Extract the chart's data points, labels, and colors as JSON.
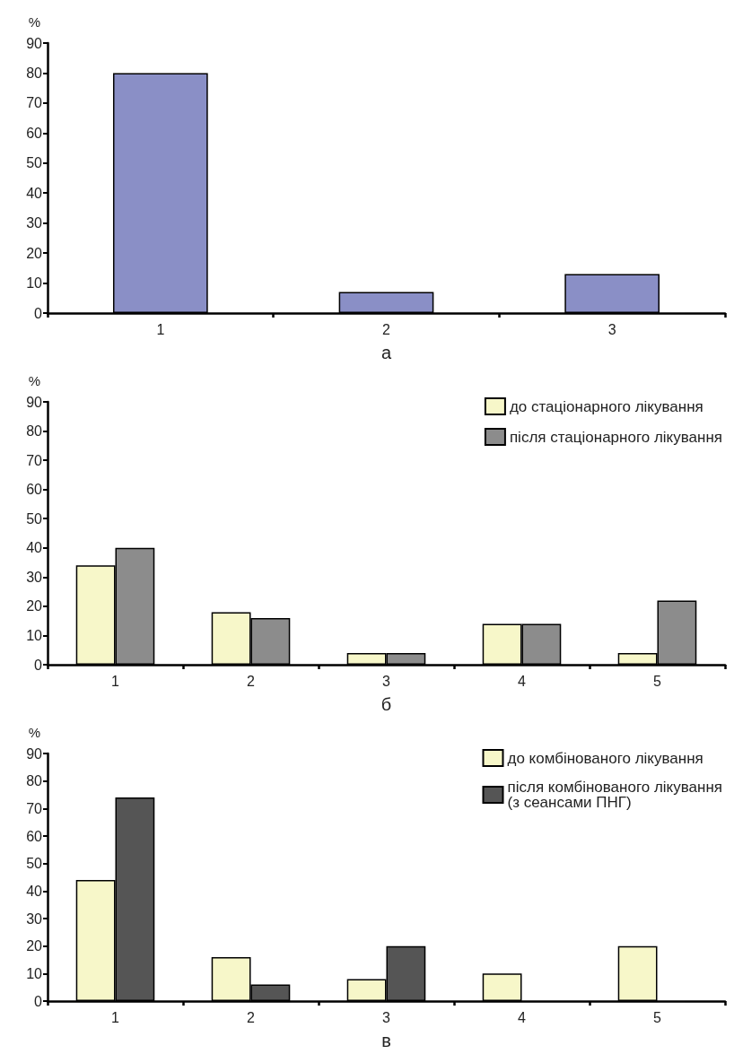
{
  "chart_data": [
    {
      "type": "bar",
      "xlabel": "а",
      "ylabel": "%",
      "categories": [
        "1",
        "2",
        "3"
      ],
      "values": [
        80,
        7,
        13
      ],
      "color": "#8a8fc6",
      "ylim": [
        0,
        90
      ],
      "yticks": [
        0,
        10,
        20,
        30,
        40,
        50,
        60,
        70,
        80,
        90
      ],
      "grid": false,
      "legend": false
    },
    {
      "type": "bar",
      "xlabel": "б",
      "ylabel": "%",
      "categories": [
        "1",
        "2",
        "3",
        "4",
        "5"
      ],
      "series": [
        {
          "name": "до стаціонарного лікування",
          "color": "#f7f7c9",
          "values": [
            34,
            18,
            4,
            14,
            4
          ]
        },
        {
          "name": "після стаціонарного лікування",
          "color": "#8c8c8c",
          "values": [
            40,
            16,
            4,
            14,
            22
          ]
        }
      ],
      "ylim": [
        0,
        90
      ],
      "yticks": [
        0,
        10,
        20,
        30,
        40,
        50,
        60,
        70,
        80,
        90
      ],
      "grid": false,
      "legend": "top right"
    },
    {
      "type": "bar",
      "xlabel": "в",
      "ylabel": "%",
      "categories": [
        "1",
        "2",
        "3",
        "4",
        "5"
      ],
      "series": [
        {
          "name": "до комбінованого лікування",
          "color": "#f7f7c9",
          "values": [
            44,
            16,
            8,
            10,
            20
          ]
        },
        {
          "name": "після комбінованого лікування\n(з сеансами ПНГ)",
          "color": "#555555",
          "values": [
            74,
            6,
            20,
            0,
            0
          ]
        }
      ],
      "ylim": [
        0,
        90
      ],
      "yticks": [
        0,
        10,
        20,
        30,
        40,
        50,
        60,
        70,
        80,
        90
      ],
      "grid": false,
      "legend": "top right"
    }
  ]
}
